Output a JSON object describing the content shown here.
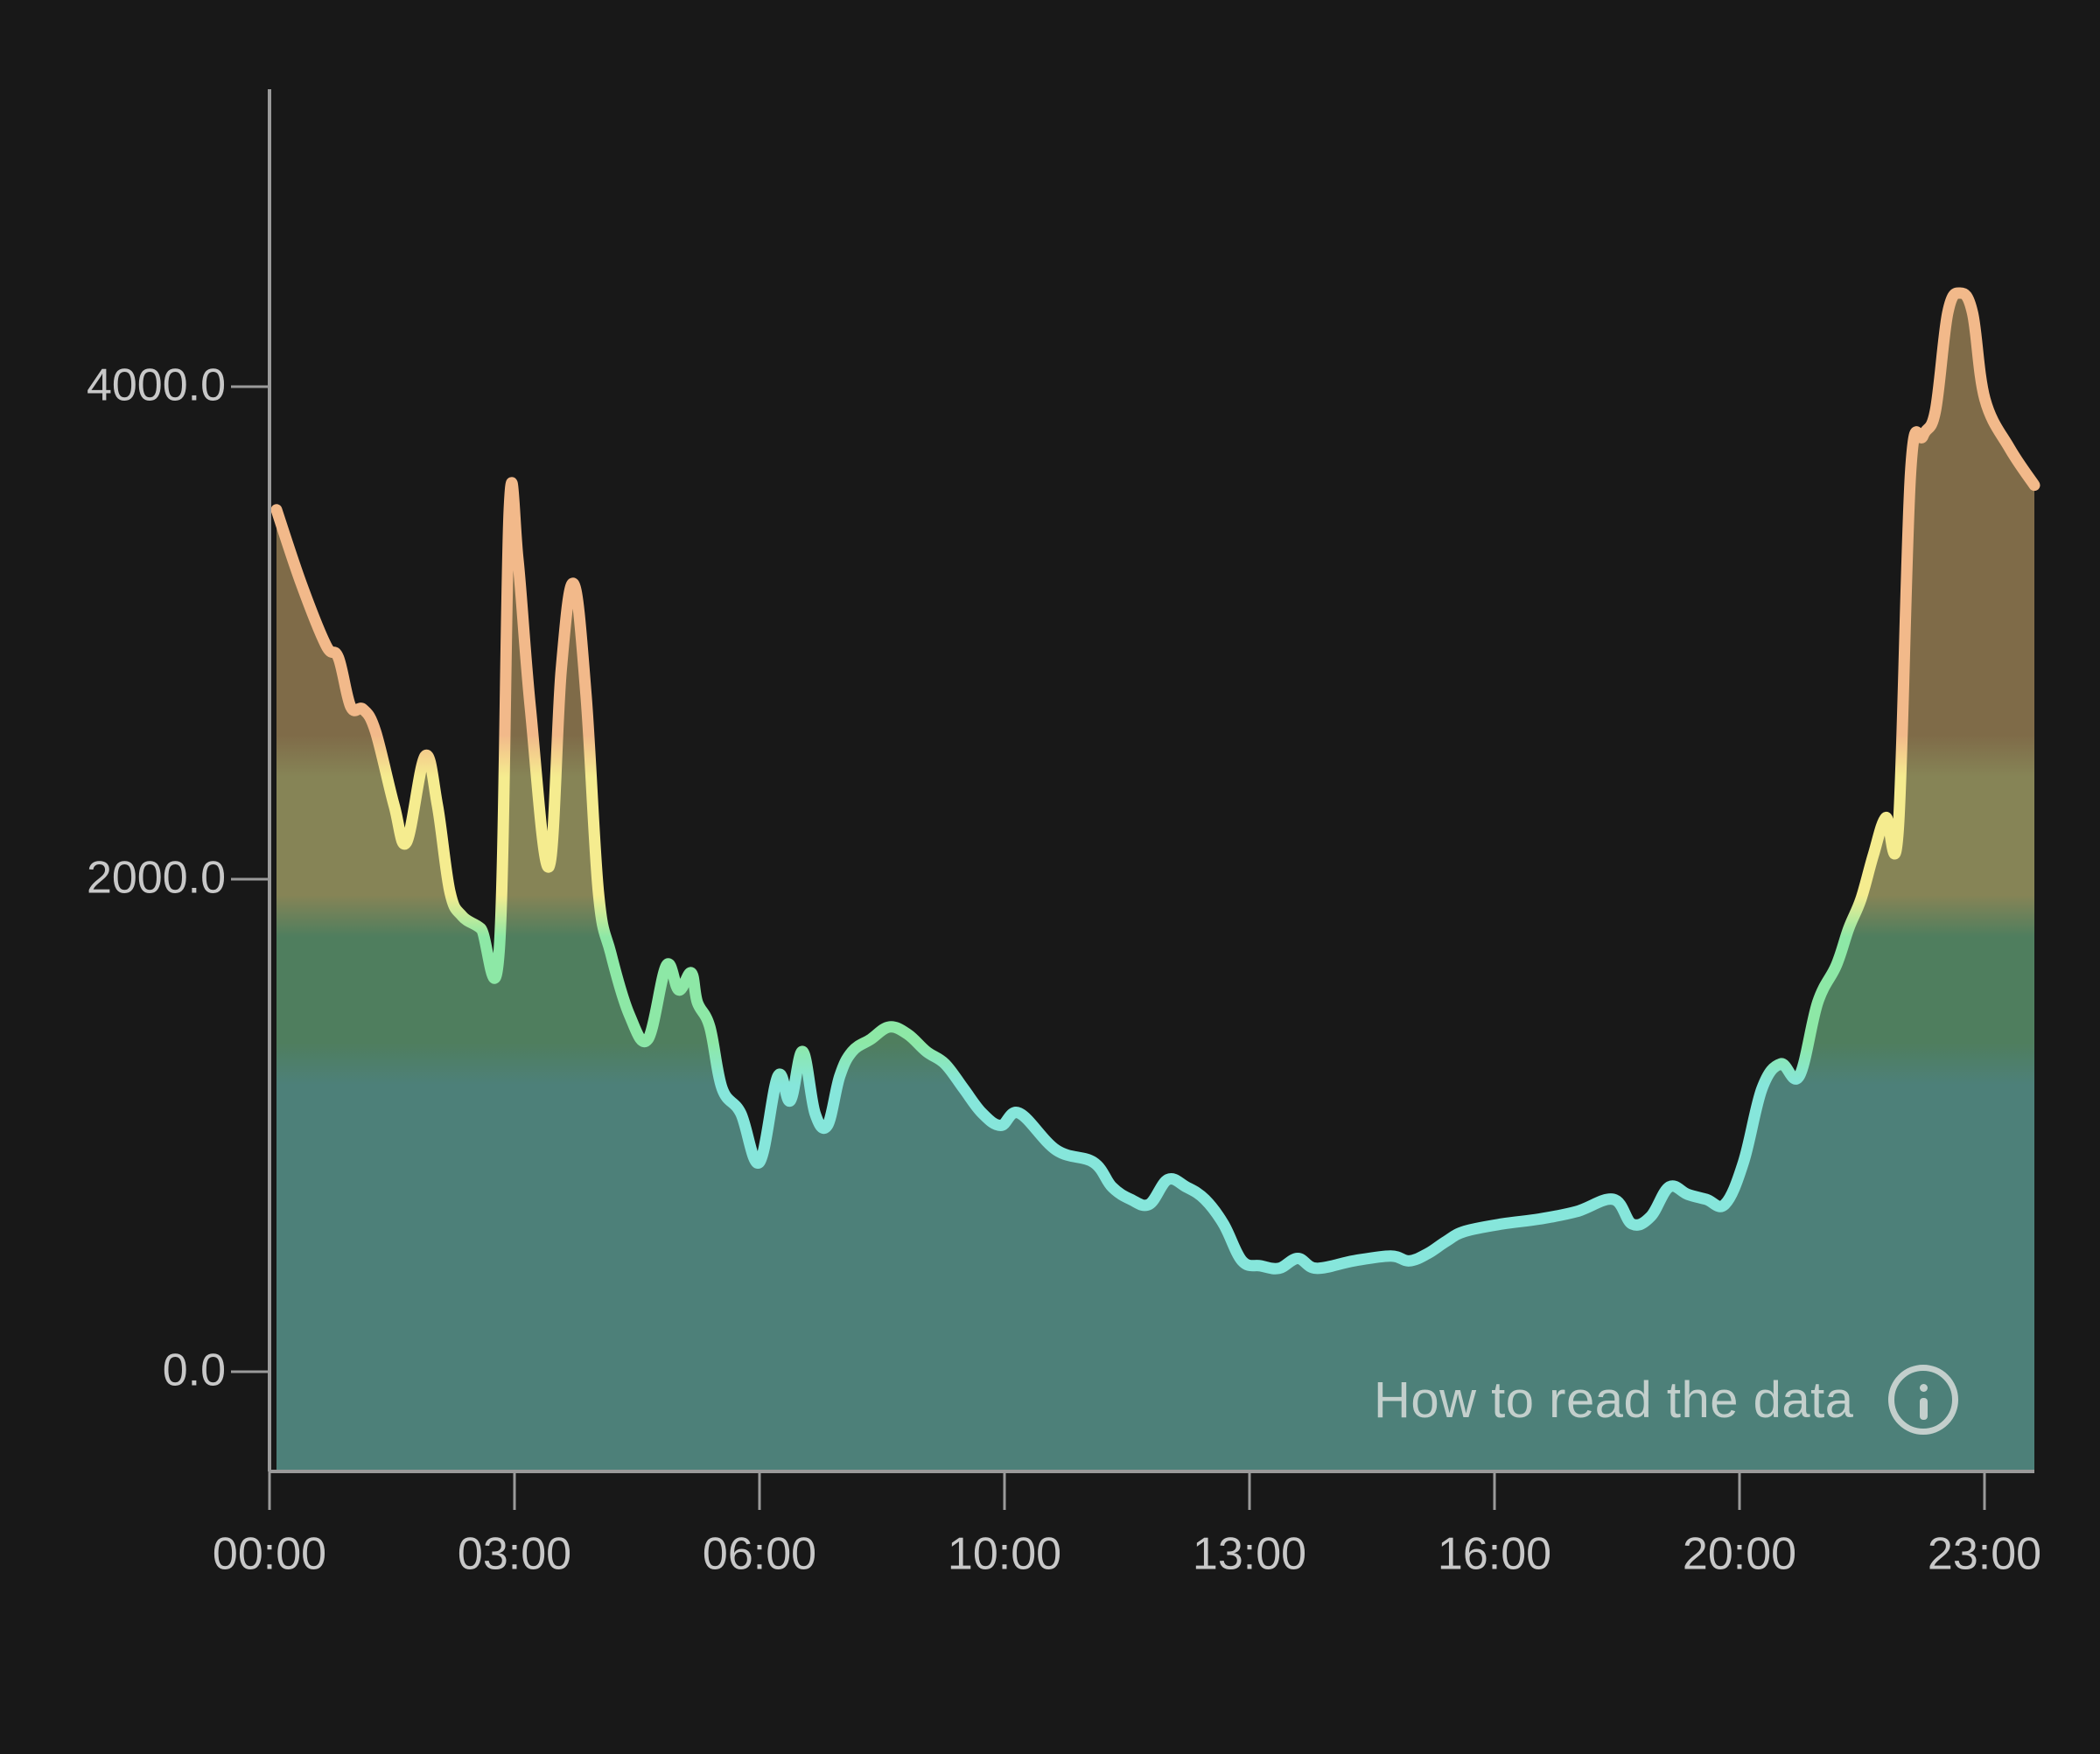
{
  "chart_data": {
    "type": "area",
    "title": "",
    "xlabel": "",
    "ylabel": "",
    "x_tick_labels": [
      "00:00",
      "03:00",
      "06:00",
      "10:00",
      "13:00",
      "16:00",
      "20:00",
      "23:00"
    ],
    "y_tick_labels": [
      "0.0",
      "2000.0",
      "4000.0"
    ],
    "y_ticks": [
      0,
      2000,
      4000
    ],
    "ylim": [
      -400,
      5200
    ],
    "grid": false,
    "legend": null,
    "color_bands": [
      {
        "from": 2500,
        "to": 5200,
        "line_color": "#f2b98a",
        "fill_color": "#7f6b48"
      },
      {
        "from": 1850,
        "to": 2500,
        "line_color": "#f5ec8f",
        "fill_color": "#868456"
      },
      {
        "from": 1250,
        "to": 1850,
        "line_color": "#8de8a6",
        "fill_color": "#4f7e5e"
      },
      {
        "from": -400,
        "to": 1250,
        "line_color": "#86e6db",
        "fill_color": "#4d8079"
      }
    ],
    "series": [
      {
        "name": "value",
        "x": [
          "00:00",
          "00:20",
          "00:40",
          "00:50",
          "01:00",
          "01:10",
          "01:20",
          "01:35",
          "01:45",
          "02:00",
          "02:10",
          "02:20",
          "02:30",
          "02:45",
          "03:00",
          "03:08",
          "03:15",
          "03:25",
          "03:40",
          "03:50",
          "04:00",
          "04:10",
          "04:20",
          "04:30",
          "04:45",
          "05:00",
          "05:15",
          "05:25",
          "05:35",
          "05:40",
          "05:50",
          "06:00",
          "06:15",
          "06:30",
          "06:45",
          "06:55",
          "07:05",
          "07:15",
          "07:25",
          "07:35",
          "07:45",
          "08:00",
          "08:15",
          "08:30",
          "08:45",
          "09:00",
          "09:15",
          "09:30",
          "09:45",
          "10:00",
          "10:30",
          "11:00",
          "11:15",
          "11:30",
          "11:45",
          "12:00",
          "12:15",
          "12:30",
          "12:45",
          "13:00",
          "13:15",
          "13:30",
          "13:45",
          "14:00",
          "14:30",
          "15:00",
          "15:15",
          "15:30",
          "15:45",
          "16:00",
          "16:30",
          "17:00",
          "17:30",
          "18:00",
          "18:15",
          "18:30",
          "18:45",
          "19:00",
          "19:15",
          "19:30",
          "19:45",
          "20:00",
          "20:15",
          "20:30",
          "20:45",
          "21:00",
          "21:10",
          "21:20",
          "21:30",
          "21:40",
          "21:50",
          "22:00",
          "22:10",
          "22:20",
          "22:30",
          "22:40",
          "22:50",
          "23:00",
          "23:20",
          "23:40"
        ],
        "values": [
          3500,
          3200,
          2950,
          2900,
          2700,
          2690,
          2600,
          2300,
          2150,
          2500,
          2300,
          1950,
          1850,
          1800,
          1720,
          3500,
          3300,
          2700,
          2050,
          2850,
          3200,
          2750,
          1950,
          1700,
          1450,
          1350,
          1650,
          1550,
          1620,
          1500,
          1400,
          1150,
          1050,
          850,
          1200,
          1100,
          1300,
          1050,
          1000,
          1200,
          1300,
          1350,
          1400,
          1370,
          1300,
          1250,
          1150,
          1050,
          1000,
          1050,
          900,
          850,
          750,
          700,
          680,
          780,
          750,
          700,
          600,
          450,
          430,
          420,
          460,
          420,
          450,
          470,
          450,
          480,
          530,
          570,
          600,
          620,
          650,
          700,
          600,
          630,
          750,
          720,
          700,
          680,
          850,
          1150,
          1250,
          1200,
          1500,
          1650,
          1800,
          1920,
          2100,
          2250,
          2200,
          3650,
          3800,
          3900,
          4300,
          4380,
          4300,
          3950,
          3750,
          3600
        ]
      }
    ],
    "annotations": [
      "How to read the data"
    ]
  },
  "help": {
    "label": "How to read the data",
    "icon": "info-icon"
  },
  "colors": {
    "background": "#181818",
    "axis": "#9a9a9a",
    "tick_label": "#c8c8c8",
    "help_text": "#c3cfcc"
  }
}
